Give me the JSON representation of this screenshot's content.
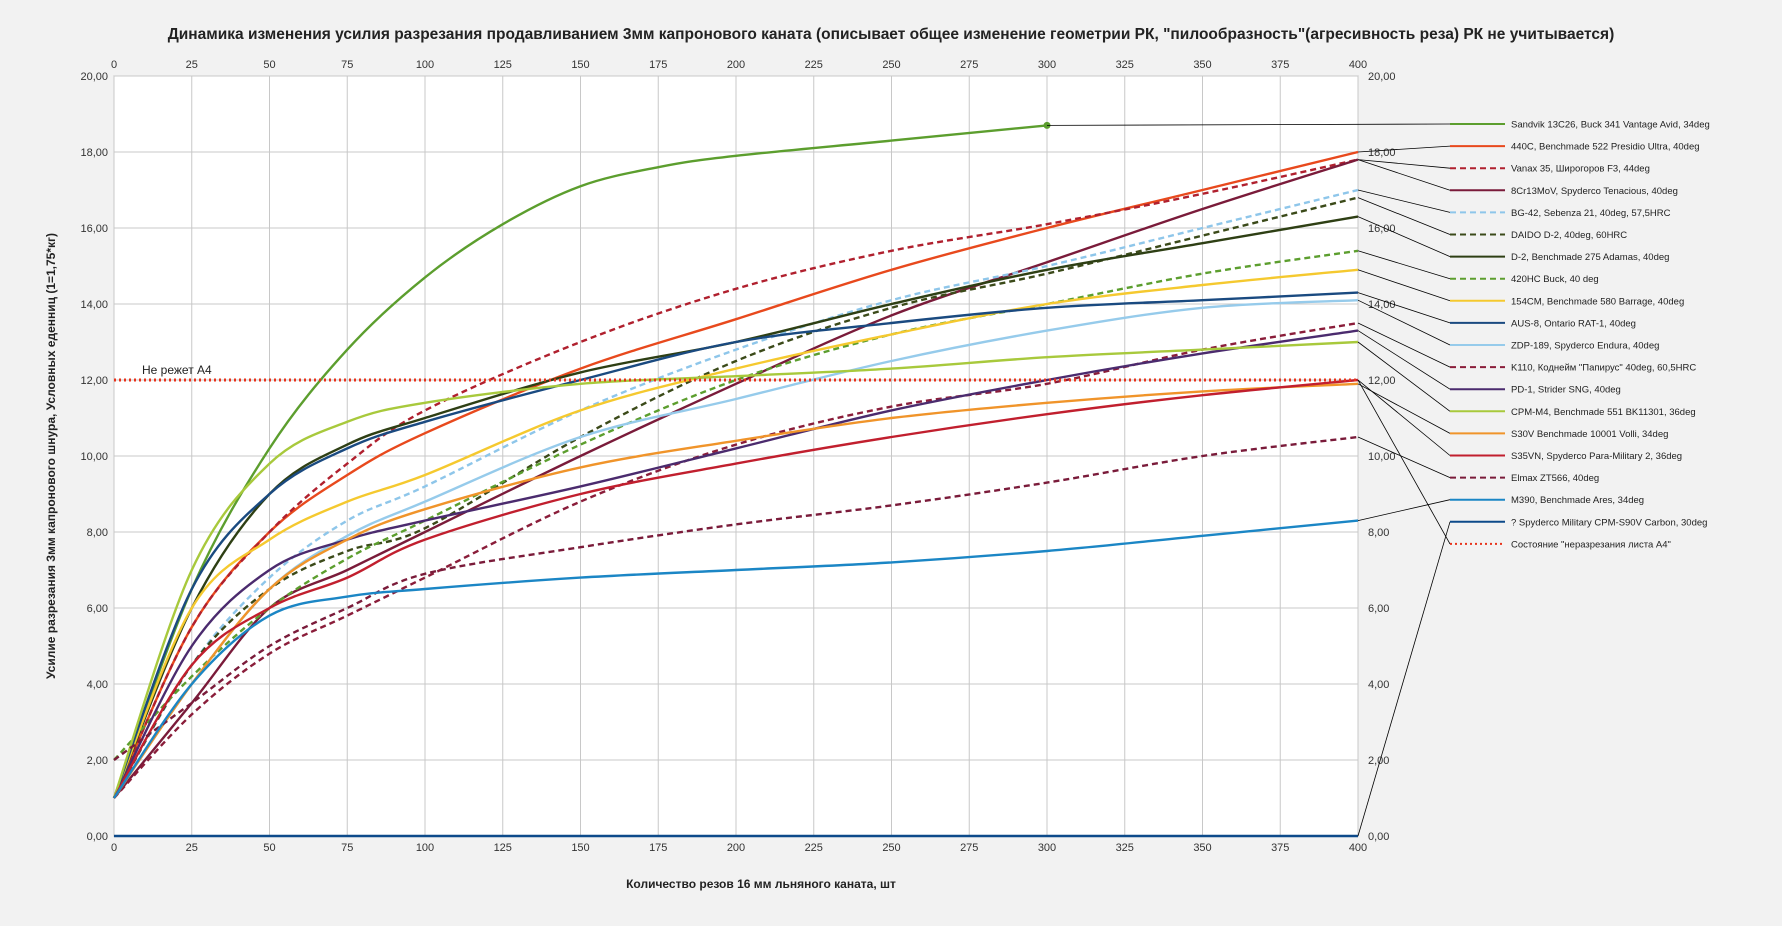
{
  "chart_data": {
    "type": "line",
    "title": "Динамика изменения усилия разрезания продавливанием 3мм капронового каната (описывает общее изменение геометрии РК, \"пилообразность\"(агресивность реза) РК не учитывается)",
    "xlabel": "Количество резов 16 мм льняного каната, шт",
    "ylabel": "Усилие разрезания 3мм капронового шнура, Условных еденниц (1=1,75*кг)",
    "xlim": [
      0,
      400
    ],
    "ylim": [
      0,
      20
    ],
    "x_ticks": [
      "0",
      "25",
      "50",
      "75",
      "100",
      "125",
      "150",
      "175",
      "200",
      "225",
      "250",
      "275",
      "300",
      "325",
      "350",
      "375",
      "400"
    ],
    "y_ticks": [
      "0,00",
      "2,00",
      "4,00",
      "6,00",
      "8,00",
      "10,00",
      "12,00",
      "14,00",
      "16,00",
      "18,00",
      "20,00"
    ],
    "grid": true,
    "legend_position": "right",
    "annotation": "Не режет А4",
    "series": [
      {
        "name": "Sandvik 13C26, Buck 341 Vantage Avid, 34deg",
        "color": "#5c9e2e",
        "dash": "solid",
        "points": [
          [
            0,
            1
          ],
          [
            25,
            6.5
          ],
          [
            50,
            10.2
          ],
          [
            75,
            12.8
          ],
          [
            100,
            14.7
          ],
          [
            125,
            16.1
          ],
          [
            150,
            17.1
          ],
          [
            175,
            17.6
          ],
          [
            200,
            17.9
          ],
          [
            250,
            18.3
          ],
          [
            300,
            18.7
          ]
        ]
      },
      {
        "name": "440C, Benchmade 522 Presidio Ultra, 40deg",
        "color": "#e8491d",
        "dash": "solid",
        "points": [
          [
            0,
            1
          ],
          [
            25,
            5.5
          ],
          [
            50,
            8
          ],
          [
            75,
            9.5
          ],
          [
            100,
            10.6
          ],
          [
            150,
            12.3
          ],
          [
            200,
            13.6
          ],
          [
            250,
            14.9
          ],
          [
            300,
            16
          ],
          [
            350,
            17
          ],
          [
            400,
            18
          ]
        ]
      },
      {
        "name": "Vanax 35, Широгоров F3, 44deg",
        "color": "#b0202e",
        "dash": "dashed",
        "points": [
          [
            0,
            1
          ],
          [
            25,
            5.5
          ],
          [
            50,
            8
          ],
          [
            75,
            9.8
          ],
          [
            100,
            11.2
          ],
          [
            150,
            13
          ],
          [
            200,
            14.4
          ],
          [
            250,
            15.4
          ],
          [
            300,
            16.1
          ],
          [
            350,
            16.9
          ],
          [
            400,
            17.8
          ]
        ]
      },
      {
        "name": "8Cr13MoV, Spyderco Tenacious, 40deg",
        "color": "#7a1b3a",
        "dash": "solid",
        "points": [
          [
            0,
            1
          ],
          [
            25,
            3.5
          ],
          [
            50,
            6
          ],
          [
            75,
            7
          ],
          [
            100,
            8
          ],
          [
            150,
            10
          ],
          [
            200,
            11.9
          ],
          [
            250,
            13.7
          ],
          [
            300,
            15.1
          ],
          [
            350,
            16.5
          ],
          [
            400,
            17.8
          ]
        ]
      },
      {
        "name": "BG-42, Sebenza 21, 40deg, 57,5HRC",
        "color": "#8ec6ea",
        "dash": "dashed",
        "points": [
          [
            0,
            1
          ],
          [
            25,
            4.5
          ],
          [
            50,
            6.8
          ],
          [
            75,
            8.3
          ],
          [
            100,
            9.2
          ],
          [
            150,
            11.2
          ],
          [
            200,
            12.8
          ],
          [
            250,
            14.1
          ],
          [
            300,
            15
          ],
          [
            350,
            16
          ],
          [
            400,
            17
          ]
        ]
      },
      {
        "name": "DAIDO D-2, 40deg, 60HRC",
        "color": "#3b4a19",
        "dash": "dashed",
        "points": [
          [
            0,
            1
          ],
          [
            25,
            4.5
          ],
          [
            50,
            6.5
          ],
          [
            75,
            7.5
          ],
          [
            100,
            8.1
          ],
          [
            150,
            10.5
          ],
          [
            200,
            12.5
          ],
          [
            250,
            13.9
          ],
          [
            300,
            14.8
          ],
          [
            350,
            15.8
          ],
          [
            400,
            16.8
          ]
        ]
      },
      {
        "name": "D-2, Benchmade 275 Adamas, 40deg",
        "color": "#2e3f14",
        "dash": "solid",
        "points": [
          [
            0,
            1
          ],
          [
            25,
            6
          ],
          [
            50,
            9
          ],
          [
            75,
            10.3
          ],
          [
            100,
            11
          ],
          [
            150,
            12.2
          ],
          [
            200,
            13
          ],
          [
            250,
            14
          ],
          [
            300,
            14.9
          ],
          [
            350,
            15.6
          ],
          [
            400,
            16.3
          ]
        ]
      },
      {
        "name": "420HC Buck, 40 deg",
        "color": "#5c9e2e",
        "dash": "dashed",
        "points": [
          [
            0,
            2
          ],
          [
            25,
            4.2
          ],
          [
            50,
            6
          ],
          [
            75,
            7.3
          ],
          [
            100,
            8.3
          ],
          [
            150,
            10.3
          ],
          [
            200,
            12
          ],
          [
            250,
            13.2
          ],
          [
            300,
            14
          ],
          [
            350,
            14.8
          ],
          [
            400,
            15.4
          ]
        ]
      },
      {
        "name": "154CM, Benchmade 580 Barrage, 40deg",
        "color": "#f5c92f",
        "dash": "solid",
        "points": [
          [
            0,
            1
          ],
          [
            25,
            6
          ],
          [
            50,
            7.8
          ],
          [
            75,
            8.8
          ],
          [
            100,
            9.5
          ],
          [
            150,
            11.2
          ],
          [
            200,
            12.3
          ],
          [
            250,
            13.2
          ],
          [
            300,
            14
          ],
          [
            350,
            14.5
          ],
          [
            400,
            14.9
          ]
        ]
      },
      {
        "name": "AUS-8, Ontario RAT-1, 40deg",
        "color": "#1a4a80",
        "dash": "solid",
        "points": [
          [
            0,
            1
          ],
          [
            25,
            6.5
          ],
          [
            50,
            9
          ],
          [
            75,
            10.2
          ],
          [
            100,
            10.9
          ],
          [
            150,
            12
          ],
          [
            200,
            13
          ],
          [
            250,
            13.5
          ],
          [
            300,
            13.9
          ],
          [
            350,
            14.1
          ],
          [
            400,
            14.3
          ]
        ]
      },
      {
        "name": "ZDP-189, Spyderco Endura, 40deg",
        "color": "#96cbeb",
        "dash": "solid",
        "points": [
          [
            0,
            1
          ],
          [
            25,
            4
          ],
          [
            50,
            6.5
          ],
          [
            75,
            7.9
          ],
          [
            100,
            8.8
          ],
          [
            150,
            10.5
          ],
          [
            200,
            11.5
          ],
          [
            250,
            12.5
          ],
          [
            300,
            13.3
          ],
          [
            350,
            13.9
          ],
          [
            400,
            14.1
          ]
        ]
      },
      {
        "name": "K110, Коднейм \"Папирус\" 40deg, 60,5HRC",
        "color": "#8a1d3a",
        "dash": "dashed",
        "points": [
          [
            0,
            1
          ],
          [
            25,
            3.2
          ],
          [
            50,
            4.8
          ],
          [
            75,
            5.8
          ],
          [
            100,
            6.8
          ],
          [
            150,
            8.8
          ],
          [
            200,
            10.3
          ],
          [
            250,
            11.3
          ],
          [
            300,
            11.9
          ],
          [
            350,
            12.8
          ],
          [
            400,
            13.5
          ]
        ]
      },
      {
        "name": "PD-1, Strider SNG, 40deg",
        "color": "#4b2b6e",
        "dash": "solid",
        "points": [
          [
            0,
            1
          ],
          [
            25,
            5
          ],
          [
            50,
            7
          ],
          [
            75,
            7.8
          ],
          [
            100,
            8.3
          ],
          [
            150,
            9.2
          ],
          [
            200,
            10.2
          ],
          [
            250,
            11.2
          ],
          [
            300,
            12
          ],
          [
            350,
            12.7
          ],
          [
            400,
            13.3
          ]
        ]
      },
      {
        "name": "CPM-M4, Benchmade 551 BK11301, 36deg",
        "color": "#a8c93c",
        "dash": "solid",
        "points": [
          [
            0,
            1
          ],
          [
            25,
            7
          ],
          [
            50,
            9.8
          ],
          [
            75,
            10.9
          ],
          [
            100,
            11.4
          ],
          [
            150,
            11.9
          ],
          [
            200,
            12.1
          ],
          [
            250,
            12.3
          ],
          [
            300,
            12.6
          ],
          [
            350,
            12.8
          ],
          [
            400,
            13
          ]
        ]
      },
      {
        "name": "S30V Benchmade 10001 Volli, 34deg",
        "color": "#f0942a",
        "dash": "solid",
        "points": [
          [
            0,
            1
          ],
          [
            25,
            4
          ],
          [
            50,
            6.5
          ],
          [
            75,
            7.8
          ],
          [
            100,
            8.6
          ],
          [
            150,
            9.7
          ],
          [
            200,
            10.4
          ],
          [
            250,
            11
          ],
          [
            300,
            11.4
          ],
          [
            350,
            11.7
          ],
          [
            400,
            11.9
          ]
        ]
      },
      {
        "name": "S35VN, Spyderco Para-Military 2, 36deg",
        "color": "#c11f2e",
        "dash": "solid",
        "points": [
          [
            0,
            1
          ],
          [
            25,
            4.5
          ],
          [
            50,
            6
          ],
          [
            75,
            6.8
          ],
          [
            100,
            7.8
          ],
          [
            150,
            9
          ],
          [
            200,
            9.8
          ],
          [
            250,
            10.5
          ],
          [
            300,
            11.1
          ],
          [
            350,
            11.6
          ],
          [
            400,
            12
          ]
        ]
      },
      {
        "name": "Elmax ZT566, 40deg",
        "color": "#7a1b3a",
        "dash": "dashed",
        "points": [
          [
            0,
            2
          ],
          [
            25,
            3.5
          ],
          [
            50,
            5
          ],
          [
            75,
            6
          ],
          [
            100,
            6.9
          ],
          [
            150,
            7.6
          ],
          [
            200,
            8.2
          ],
          [
            250,
            8.7
          ],
          [
            300,
            9.3
          ],
          [
            350,
            10
          ],
          [
            400,
            10.5
          ]
        ]
      },
      {
        "name": "M390, Benchmade Ares, 34deg",
        "color": "#1b86c5",
        "dash": "solid",
        "points": [
          [
            0,
            1
          ],
          [
            25,
            4
          ],
          [
            50,
            5.8
          ],
          [
            75,
            6.3
          ],
          [
            100,
            6.5
          ],
          [
            150,
            6.8
          ],
          [
            200,
            7
          ],
          [
            250,
            7.2
          ],
          [
            300,
            7.5
          ],
          [
            350,
            7.9
          ],
          [
            400,
            8.3
          ]
        ]
      },
      {
        "name": "? Spyderco Military CPM-S90V Carbon, 30deg",
        "color": "#0d4a8a",
        "dash": "solid",
        "points": [
          [
            0,
            0
          ],
          [
            400,
            0
          ]
        ]
      },
      {
        "name": "Состояние \"неразрезания листа А4\"",
        "color": "#e8331c",
        "dash": "dotted",
        "points": [
          [
            0,
            12
          ],
          [
            400,
            12
          ]
        ]
      }
    ]
  }
}
